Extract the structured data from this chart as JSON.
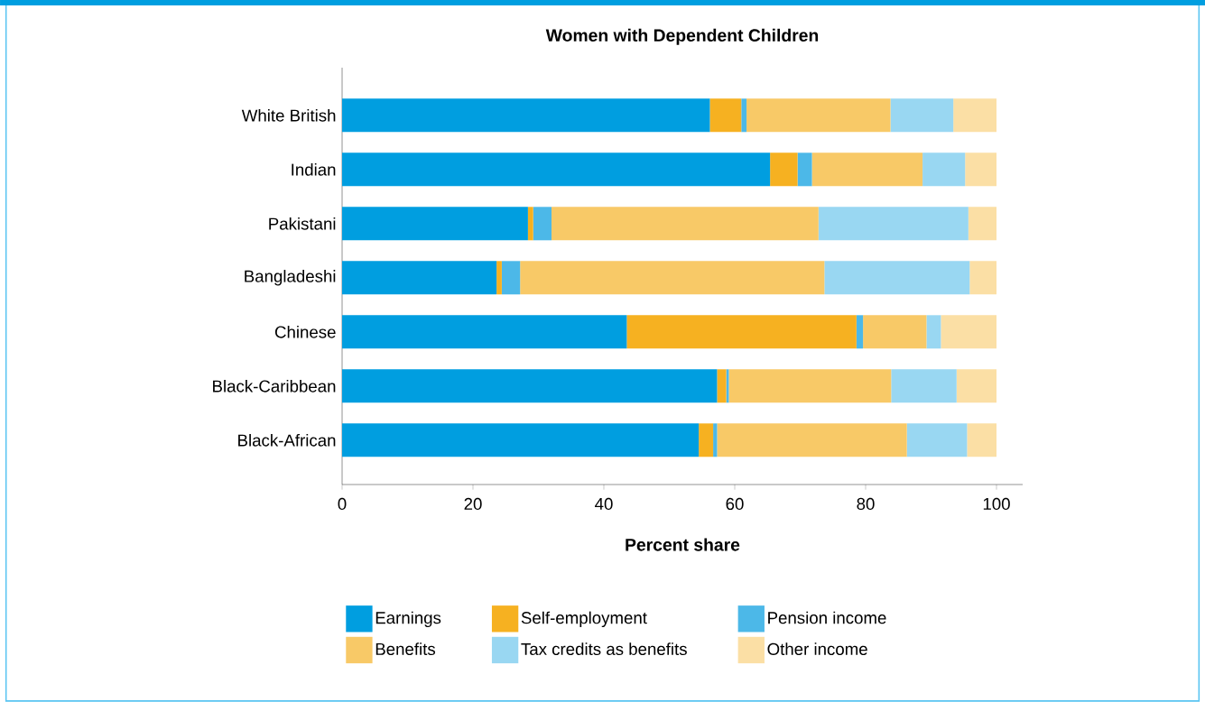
{
  "chart_data": {
    "type": "bar",
    "orientation": "horizontal",
    "stacked": true,
    "title": "Women with Dependent Children",
    "xlabel": "Percent share",
    "categories": [
      "White British",
      "Indian",
      "Pakistani",
      "Bangladeshi",
      "Chinese",
      "Black-Caribbean",
      "Black-African"
    ],
    "series": [
      {
        "name": "Earnings",
        "color": "#009ee0",
        "values": [
          56.2,
          65.4,
          28.4,
          23.6,
          43.5,
          57.3,
          54.5
        ]
      },
      {
        "name": "Self-employment",
        "color": "#f6b121",
        "values": [
          4.8,
          4.2,
          0.8,
          0.8,
          35.1,
          1.4,
          2.2
        ]
      },
      {
        "name": "Pension income",
        "color": "#4cb8e8",
        "values": [
          0.8,
          2.2,
          2.8,
          2.8,
          1.0,
          0.4,
          0.6
        ]
      },
      {
        "name": "Benefits",
        "color": "#f8c967",
        "values": [
          22.0,
          16.9,
          40.8,
          46.5,
          9.7,
          24.8,
          29.0
        ]
      },
      {
        "name": "Tax credits as benefits",
        "color": "#99d7f2",
        "values": [
          9.6,
          6.5,
          22.9,
          22.2,
          2.2,
          10.0,
          9.2
        ]
      },
      {
        "name": "Other income",
        "color": "#fbdfa5",
        "values": [
          6.6,
          4.8,
          4.3,
          4.1,
          8.5,
          6.1,
          4.5
        ]
      }
    ],
    "xlim": [
      0,
      104
    ],
    "xticks": [
      0,
      20,
      40,
      60,
      80,
      100
    ],
    "legend": "bottom",
    "grid": false
  }
}
